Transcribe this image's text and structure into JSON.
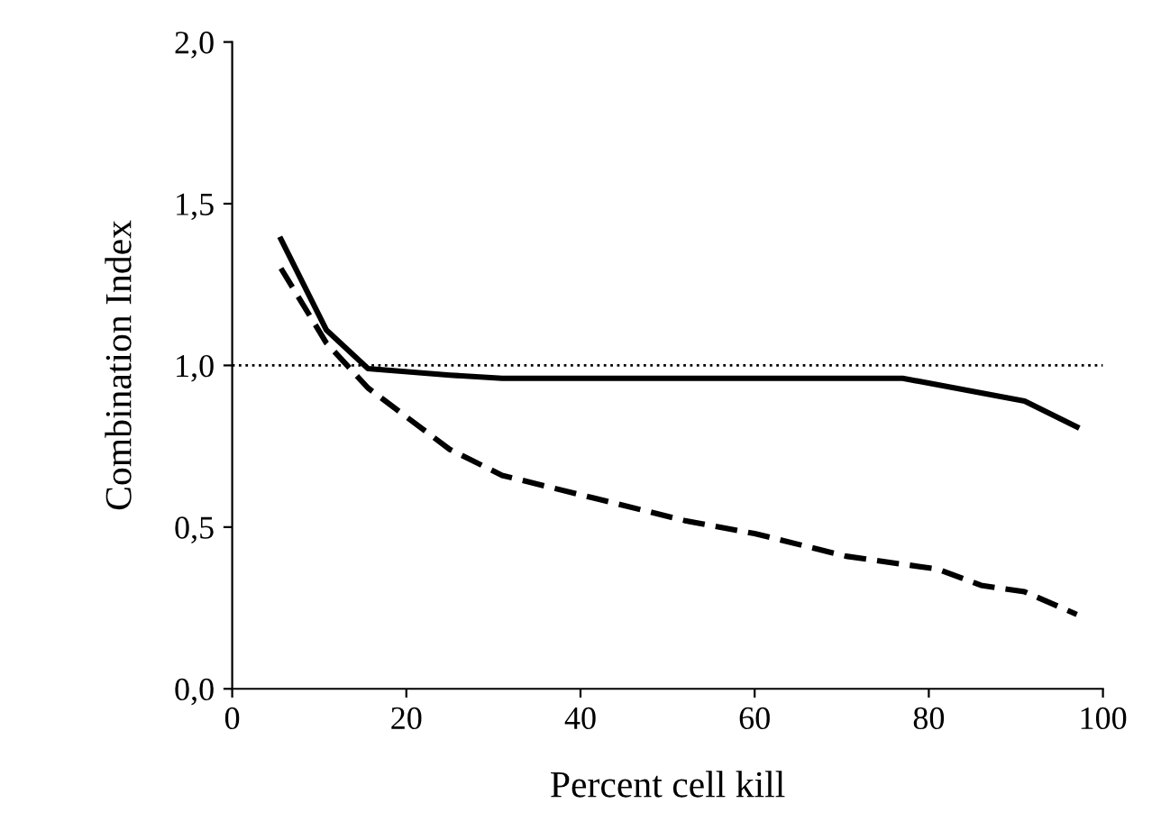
{
  "chart_data": {
    "type": "line",
    "xlabel": "Percent cell kill",
    "ylabel": "Combination Index",
    "xlim": [
      0,
      100
    ],
    "xticks": [
      0,
      20,
      40,
      60,
      80,
      100
    ],
    "ylim": [
      0,
      2
    ],
    "yticks": [
      {
        "value": 0,
        "label": "0,0"
      },
      {
        "value": 0.5,
        "label": "0,5"
      },
      {
        "value": 1,
        "label": "1,0"
      },
      {
        "value": 1.5,
        "label": "1,5"
      },
      {
        "value": 2,
        "label": "2,0"
      }
    ],
    "grid": false,
    "legend": false,
    "marker": "none",
    "ref_lines": [
      {
        "axis": "y",
        "value": 1,
        "line_style": "dotted",
        "color": "#000000"
      }
    ],
    "series": [
      {
        "color": "#000000",
        "line_style": "solid",
        "x": [
          5.6,
          10.8,
          15.6,
          25,
          31,
          45,
          60,
          77,
          83,
          91,
          97
        ],
        "values": [
          1.39,
          1.11,
          0.99,
          0.97,
          0.96,
          0.96,
          0.96,
          0.96,
          0.93,
          0.89,
          0.81
        ]
      },
      {
        "color": "#000000",
        "line_style": "dashed",
        "x": [
          5.6,
          10.8,
          15.6,
          25,
          31,
          41.5,
          52,
          60,
          70.5,
          81,
          86,
          91,
          97
        ],
        "values": [
          1.3,
          1.07,
          0.93,
          0.74,
          0.66,
          0.59,
          0.52,
          0.48,
          0.41,
          0.37,
          0.32,
          0.3,
          0.23
        ]
      }
    ]
  }
}
